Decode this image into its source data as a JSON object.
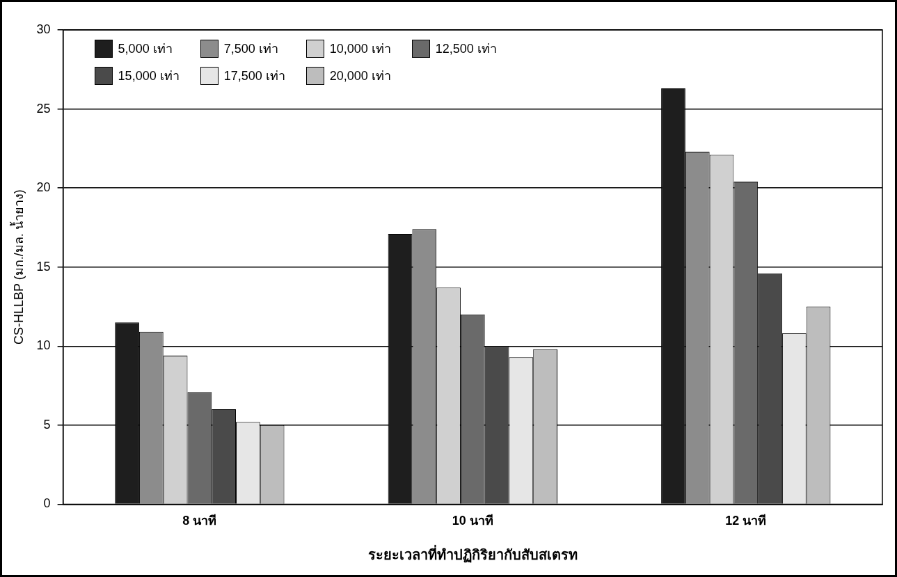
{
  "chart_data": {
    "type": "bar",
    "xlabel": "ระยะเวลาที่ทำปฏิกิริยากับสับสเตรท",
    "ylabel": "CS-HLLBP (มก./มล. น้ำยาง)",
    "categories": [
      "8 นาที",
      "10 นาที",
      "12 นาที"
    ],
    "series": [
      {
        "name": "5,000 เท่า",
        "color": "#1e1e1e",
        "values": [
          11.5,
          17.1,
          26.3
        ]
      },
      {
        "name": "7,500 เท่า",
        "color": "#8c8c8c",
        "values": [
          10.9,
          17.4,
          22.3
        ]
      },
      {
        "name": "10,000 เท่า",
        "color": "#d0d0d0",
        "values": [
          9.4,
          13.7,
          22.1
        ]
      },
      {
        "name": "12,500 เท่า",
        "color": "#6a6a6a",
        "values": [
          7.1,
          12.0,
          20.4
        ]
      },
      {
        "name": "15,000 เท่า",
        "color": "#4a4a4a",
        "values": [
          6.0,
          10.0,
          14.6
        ]
      },
      {
        "name": "17,500 เท่า",
        "color": "#e6e6e6",
        "values": [
          5.2,
          9.3,
          10.8
        ]
      },
      {
        "name": "20,000 เท่า",
        "color": "#bdbdbd",
        "values": [
          5.0,
          9.8,
          12.5
        ]
      }
    ],
    "ylim": [
      0,
      30
    ],
    "yticks": [
      0,
      5,
      10,
      15,
      20,
      25,
      30
    ],
    "grid": "y",
    "legend": "top left"
  }
}
